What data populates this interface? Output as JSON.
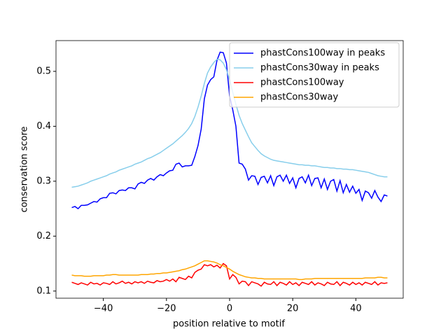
{
  "chart_data": {
    "type": "line",
    "xlabel": "position relative to motif",
    "ylabel": "conservation score",
    "x": [
      -50,
      -49,
      -48,
      -47,
      -46,
      -45,
      -44,
      -43,
      -42,
      -41,
      -40,
      -39,
      -38,
      -37,
      -36,
      -35,
      -34,
      -33,
      -32,
      -31,
      -30,
      -29,
      -28,
      -27,
      -26,
      -25,
      -24,
      -23,
      -22,
      -21,
      -20,
      -19,
      -18,
      -17,
      -16,
      -15,
      -14,
      -13,
      -12,
      -11,
      -10,
      -9,
      -8,
      -7,
      -6,
      -5,
      -4,
      -3,
      -2,
      -1,
      0,
      1,
      2,
      3,
      4,
      5,
      6,
      7,
      8,
      9,
      10,
      11,
      12,
      13,
      14,
      15,
      16,
      17,
      18,
      19,
      20,
      21,
      22,
      23,
      24,
      25,
      26,
      27,
      28,
      29,
      30,
      31,
      32,
      33,
      34,
      35,
      36,
      37,
      38,
      39,
      40,
      41,
      42,
      43,
      44,
      45,
      46,
      47,
      48,
      49,
      50
    ],
    "series": [
      {
        "name": "phastCons100way in peaks",
        "color": "#0000ff",
        "values": [
          0.252,
          0.254,
          0.25,
          0.256,
          0.256,
          0.257,
          0.26,
          0.263,
          0.262,
          0.268,
          0.27,
          0.27,
          0.278,
          0.279,
          0.277,
          0.283,
          0.284,
          0.283,
          0.288,
          0.288,
          0.286,
          0.295,
          0.298,
          0.296,
          0.302,
          0.305,
          0.302,
          0.308,
          0.312,
          0.31,
          0.315,
          0.319,
          0.32,
          0.331,
          0.333,
          0.326,
          0.328,
          0.328,
          0.329,
          0.345,
          0.365,
          0.395,
          0.45,
          0.475,
          0.485,
          0.49,
          0.52,
          0.535,
          0.534,
          0.515,
          0.455,
          0.43,
          0.4,
          0.333,
          0.331,
          0.322,
          0.302,
          0.31,
          0.309,
          0.294,
          0.307,
          0.309,
          0.297,
          0.31,
          0.292,
          0.308,
          0.311,
          0.3,
          0.311,
          0.296,
          0.306,
          0.288,
          0.305,
          0.308,
          0.297,
          0.311,
          0.292,
          0.305,
          0.306,
          0.288,
          0.304,
          0.285,
          0.3,
          0.303,
          0.282,
          0.301,
          0.279,
          0.294,
          0.28,
          0.291,
          0.278,
          0.285,
          0.265,
          0.282,
          0.279,
          0.269,
          0.283,
          0.271,
          0.263,
          0.275,
          0.273
        ]
      },
      {
        "name": "phastCons30way in peaks",
        "color": "#87ceeb",
        "values": [
          0.289,
          0.29,
          0.291,
          0.293,
          0.295,
          0.297,
          0.3,
          0.302,
          0.304,
          0.306,
          0.308,
          0.31,
          0.313,
          0.315,
          0.317,
          0.32,
          0.322,
          0.324,
          0.326,
          0.328,
          0.331,
          0.333,
          0.335,
          0.338,
          0.341,
          0.343,
          0.346,
          0.349,
          0.352,
          0.356,
          0.36,
          0.364,
          0.368,
          0.373,
          0.378,
          0.383,
          0.389,
          0.396,
          0.405,
          0.418,
          0.435,
          0.455,
          0.478,
          0.497,
          0.508,
          0.516,
          0.522,
          0.521,
          0.515,
          0.503,
          0.485,
          0.462,
          0.44,
          0.42,
          0.405,
          0.393,
          0.381,
          0.37,
          0.363,
          0.356,
          0.35,
          0.346,
          0.343,
          0.34,
          0.338,
          0.337,
          0.336,
          0.335,
          0.334,
          0.333,
          0.332,
          0.331,
          0.33,
          0.33,
          0.329,
          0.329,
          0.328,
          0.328,
          0.327,
          0.326,
          0.325,
          0.325,
          0.324,
          0.324,
          0.323,
          0.323,
          0.322,
          0.322,
          0.321,
          0.321,
          0.32,
          0.319,
          0.318,
          0.317,
          0.316,
          0.314,
          0.312,
          0.31,
          0.309,
          0.308,
          0.308
        ]
      },
      {
        "name": "phastCons100way",
        "color": "#ff0000",
        "values": [
          0.116,
          0.114,
          0.112,
          0.115,
          0.113,
          0.111,
          0.116,
          0.113,
          0.114,
          0.111,
          0.115,
          0.114,
          0.112,
          0.117,
          0.113,
          0.115,
          0.118,
          0.114,
          0.116,
          0.113,
          0.117,
          0.115,
          0.117,
          0.114,
          0.118,
          0.116,
          0.115,
          0.119,
          0.117,
          0.118,
          0.121,
          0.118,
          0.122,
          0.117,
          0.125,
          0.123,
          0.121,
          0.127,
          0.124,
          0.134,
          0.138,
          0.14,
          0.148,
          0.146,
          0.148,
          0.144,
          0.147,
          0.142,
          0.15,
          0.146,
          0.122,
          0.13,
          0.125,
          0.113,
          0.118,
          0.117,
          0.11,
          0.117,
          0.115,
          0.113,
          0.109,
          0.116,
          0.113,
          0.112,
          0.117,
          0.11,
          0.116,
          0.114,
          0.111,
          0.117,
          0.112,
          0.115,
          0.11,
          0.116,
          0.114,
          0.112,
          0.117,
          0.111,
          0.115,
          0.113,
          0.11,
          0.116,
          0.113,
          0.112,
          0.117,
          0.11,
          0.116,
          0.114,
          0.111,
          0.116,
          0.112,
          0.115,
          0.111,
          0.116,
          0.114,
          0.112,
          0.117,
          0.111,
          0.115,
          0.114,
          0.115
        ]
      },
      {
        "name": "phastCons30way",
        "color": "#ffa500",
        "values": [
          0.129,
          0.128,
          0.128,
          0.128,
          0.127,
          0.127,
          0.127,
          0.128,
          0.128,
          0.128,
          0.128,
          0.129,
          0.129,
          0.13,
          0.13,
          0.129,
          0.129,
          0.129,
          0.129,
          0.129,
          0.129,
          0.129,
          0.13,
          0.13,
          0.13,
          0.131,
          0.131,
          0.132,
          0.132,
          0.133,
          0.133,
          0.134,
          0.135,
          0.136,
          0.137,
          0.139,
          0.14,
          0.142,
          0.144,
          0.146,
          0.149,
          0.152,
          0.155,
          0.155,
          0.154,
          0.153,
          0.151,
          0.148,
          0.146,
          0.143,
          0.14,
          0.136,
          0.133,
          0.13,
          0.128,
          0.126,
          0.125,
          0.124,
          0.124,
          0.123,
          0.123,
          0.122,
          0.122,
          0.122,
          0.122,
          0.122,
          0.122,
          0.122,
          0.122,
          0.122,
          0.122,
          0.122,
          0.121,
          0.121,
          0.122,
          0.122,
          0.122,
          0.123,
          0.123,
          0.123,
          0.123,
          0.123,
          0.123,
          0.123,
          0.123,
          0.123,
          0.123,
          0.123,
          0.123,
          0.123,
          0.123,
          0.123,
          0.123,
          0.124,
          0.124,
          0.124,
          0.124,
          0.125,
          0.125,
          0.124,
          0.124
        ]
      }
    ],
    "xlim": [
      -55,
      55
    ],
    "ylim": [
      0.087,
      0.556
    ],
    "xticks": [
      {
        "value": -40,
        "label": "−40"
      },
      {
        "value": -20,
        "label": "−20"
      },
      0,
      20,
      40
    ],
    "yticks": [
      0.1,
      0.2,
      0.3,
      0.4,
      0.5
    ],
    "legend": "upper right"
  }
}
